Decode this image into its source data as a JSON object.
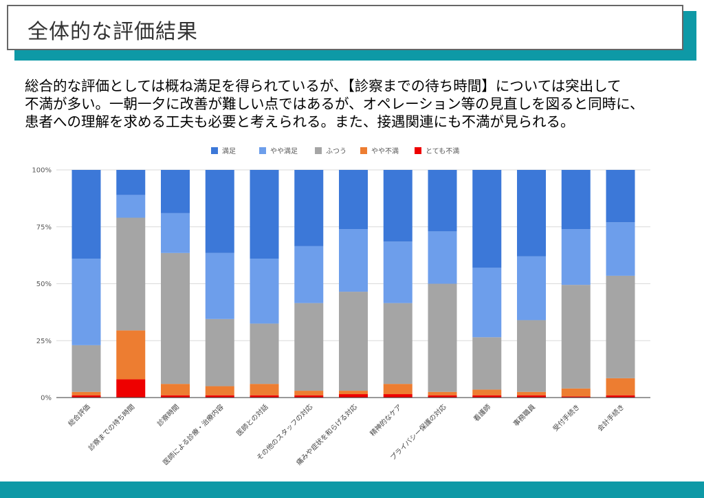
{
  "header": {
    "title": "全体的な評価結果"
  },
  "summary": {
    "lines": [
      "総合的な評価としては概ね満足を得られているが、【診察までの待ち時間】については突出して",
      "不満が多い。一朝一夕に改善が難しい点ではあるが、オペレーション等の見直しを図ると同時に、",
      "患者への理解を求める工夫も必要と考えられる。また、接遇関連にも不満が見られる。"
    ]
  },
  "chart_data": {
    "type": "bar",
    "stacked": true,
    "percent": true,
    "categories": [
      "総合評価",
      "診察までの待ち時間",
      "診察時間",
      "医師による診療・治療内容",
      "医師との対話",
      "その他のスタッフの対応",
      "痛みや症状を和らげる対応",
      "精神的なケア",
      "プライバシー保護の対応",
      "看護師",
      "事務職員",
      "受付手続き",
      "会計手続き"
    ],
    "series": [
      {
        "name": "とても不満",
        "color": "#ee0000",
        "values": [
          1,
          8,
          1,
          1,
          1,
          1,
          1.5,
          1.5,
          1,
          1,
          1,
          0.5,
          1
        ]
      },
      {
        "name": "やや不満",
        "color": "#ed7d31",
        "values": [
          1.5,
          21.5,
          5,
          4,
          5,
          2,
          1.5,
          4.5,
          1.5,
          2.5,
          1.5,
          3.5,
          7.5
        ]
      },
      {
        "name": "ふつう",
        "color": "#a5a5a5",
        "values": [
          20.5,
          49.5,
          57.5,
          29.5,
          26.5,
          38.5,
          43.5,
          35.5,
          47.5,
          23,
          31.5,
          45.5,
          45
        ]
      },
      {
        "name": "やや満足",
        "color": "#6d9eeb",
        "values": [
          38,
          10,
          17.5,
          29,
          28.5,
          25,
          27.5,
          27,
          23,
          30.5,
          28,
          24.5,
          23.5
        ]
      },
      {
        "name": "満足",
        "color": "#3c78d8",
        "values": [
          39,
          11,
          19,
          36.5,
          39,
          33.5,
          26,
          31.5,
          27,
          43,
          38,
          26,
          23
        ]
      }
    ],
    "legend_order": [
      "満足",
      "やや満足",
      "ふつう",
      "やや不満",
      "とても不満"
    ],
    "yticks": [
      "0%",
      "25%",
      "50%",
      "75%",
      "100%"
    ],
    "ylim": [
      0,
      100
    ],
    "legend_position": "top",
    "grid": true
  }
}
